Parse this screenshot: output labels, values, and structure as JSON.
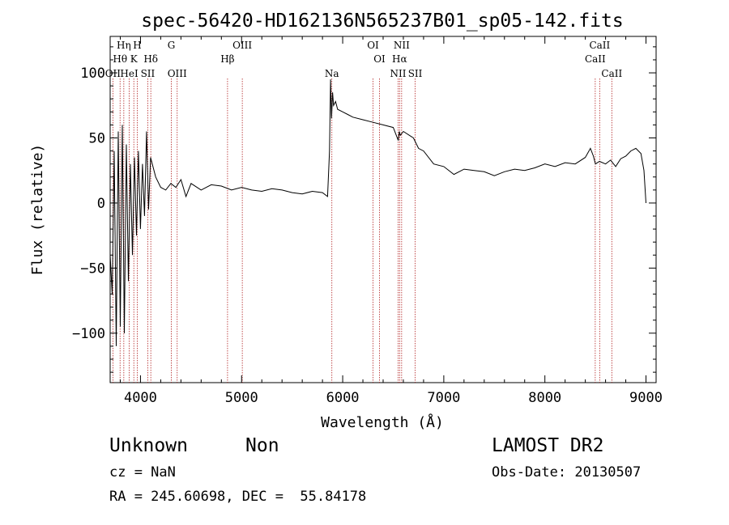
{
  "chart_data": {
    "type": "line",
    "title": "spec-56420-HD162136N565237B01_sp05-142.fits",
    "xlabel": "Wavelength (Å)",
    "ylabel": "Flux (relative)",
    "xlim": [
      3700,
      9100
    ],
    "ylim": [
      -138,
      128
    ],
    "xticks": [
      4000,
      5000,
      6000,
      7000,
      8000,
      9000
    ],
    "yticks": [
      -100,
      -50,
      0,
      50,
      100
    ],
    "series": [
      {
        "x": [
          3700,
          3720,
          3740,
          3760,
          3780,
          3800,
          3820,
          3840,
          3860,
          3880,
          3900,
          3920,
          3940,
          3960,
          3980,
          4000,
          4020,
          4040,
          4060,
          4080,
          4100,
          4150,
          4200,
          4250,
          4300,
          4350,
          4400,
          4450,
          4500,
          4600,
          4700,
          4800,
          4900,
          5000,
          5100,
          5200,
          5300,
          5400,
          5500,
          5600,
          5700,
          5800,
          5850,
          5870,
          5880,
          5890,
          5900,
          5910,
          5930,
          5950,
          6000,
          6050,
          6100,
          6200,
          6300,
          6400,
          6500,
          6550,
          6560,
          6570,
          6600,
          6700,
          6750,
          6800,
          6900,
          7000,
          7100,
          7200,
          7300,
          7400,
          7500,
          7600,
          7700,
          7800,
          7900,
          8000,
          8100,
          8200,
          8300,
          8400,
          8450,
          8480,
          8500,
          8540,
          8600,
          8650,
          8700,
          8750,
          8800,
          8850,
          8900,
          8950,
          8980,
          9000
        ],
        "y": [
          -40,
          -70,
          40,
          -110,
          55,
          -95,
          60,
          -100,
          45,
          -60,
          30,
          -40,
          35,
          -25,
          40,
          -20,
          30,
          -10,
          55,
          -5,
          35,
          20,
          12,
          10,
          15,
          12,
          18,
          5,
          15,
          10,
          14,
          13,
          10,
          12,
          10,
          9,
          11,
          10,
          8,
          7,
          9,
          8,
          5,
          40,
          95,
          65,
          85,
          75,
          78,
          72,
          70,
          68,
          66,
          64,
          62,
          60,
          58,
          48,
          55,
          52,
          55,
          50,
          42,
          40,
          30,
          28,
          22,
          26,
          25,
          24,
          21,
          24,
          26,
          25,
          27,
          30,
          28,
          31,
          30,
          35,
          42,
          36,
          30,
          32,
          30,
          33,
          28,
          34,
          36,
          40,
          42,
          38,
          25,
          0
        ]
      }
    ],
    "spectral_lines": [
      {
        "name": "Hη",
        "wave": 3835,
        "row": 0
      },
      {
        "name": "H",
        "wave": 3968,
        "row": 0
      },
      {
        "name": "G",
        "wave": 4305,
        "row": 0
      },
      {
        "name": "OIII",
        "wave": 5007,
        "row": 0
      },
      {
        "name": "OI",
        "wave": 6300,
        "row": 0
      },
      {
        "name": "NII",
        "wave": 6583,
        "row": 0
      },
      {
        "name": "CaII",
        "wave": 8542,
        "row": 0
      },
      {
        "name": "Hθ",
        "wave": 3798,
        "row": 1
      },
      {
        "name": "K",
        "wave": 3934,
        "row": 1
      },
      {
        "name": "Hδ",
        "wave": 4102,
        "row": 1
      },
      {
        "name": "Hβ",
        "wave": 4861,
        "row": 1
      },
      {
        "name": "OI",
        "wave": 6364,
        "row": 1
      },
      {
        "name": "Hα",
        "wave": 6563,
        "row": 1
      },
      {
        "name": "CaII",
        "wave": 8498,
        "row": 1
      },
      {
        "name": "OII",
        "wave": 3727,
        "row": 2
      },
      {
        "name": "HeI",
        "wave": 3889,
        "row": 2
      },
      {
        "name": "SII",
        "wave": 4072,
        "row": 2
      },
      {
        "name": "OIII",
        "wave": 4363,
        "row": 2
      },
      {
        "name": "Na",
        "wave": 5893,
        "row": 2
      },
      {
        "name": "NII",
        "wave": 6548,
        "row": 2
      },
      {
        "name": "SII",
        "wave": 6717,
        "row": 2
      },
      {
        "name": "CaII",
        "wave": 8662,
        "row": 2
      }
    ],
    "line_color": "#b22222",
    "spectrum_color": "#000000"
  },
  "info": {
    "class": "Unknown",
    "subclass": "Non",
    "survey": "LAMOST DR2",
    "cz": "cz = NaN",
    "obs_date": "Obs-Date: 20130507",
    "coords": "RA = 245.60698, DEC =  55.84178"
  }
}
